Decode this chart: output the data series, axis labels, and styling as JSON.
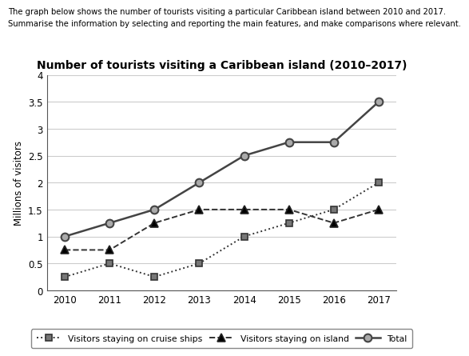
{
  "title": "Number of tourists visiting a Caribbean island (2010–2017)",
  "header_line1": "The graph below shows the number of tourists visiting a particular Caribbean island between 2010 and 2017.",
  "header_line2": "Summarise the information by selecting and reporting the main features, and make comparisons where relevant.",
  "ylabel": "Millions of visitors",
  "years": [
    2010,
    2011,
    2012,
    2013,
    2014,
    2015,
    2016,
    2017
  ],
  "cruise_ships": [
    0.25,
    0.5,
    0.25,
    0.5,
    1.0,
    1.25,
    1.5,
    2.0
  ],
  "on_island": [
    0.75,
    0.75,
    1.25,
    1.5,
    1.5,
    1.5,
    1.25,
    1.5
  ],
  "total": [
    1.0,
    1.25,
    1.5,
    2.0,
    2.5,
    2.75,
    2.75,
    3.5
  ],
  "ylim": [
    0,
    4
  ],
  "yticks": [
    0,
    0.5,
    1.0,
    1.5,
    2.0,
    2.5,
    3.0,
    3.5,
    4.0
  ],
  "cruise_color": "#333333",
  "island_color": "#333333",
  "total_color": "#555555",
  "grid_color": "#cccccc",
  "bg_color": "#ffffff",
  "legend_cruise": "Visitors staying on cruise ships",
  "legend_island": "Visitors staying on island",
  "legend_total": "Total"
}
